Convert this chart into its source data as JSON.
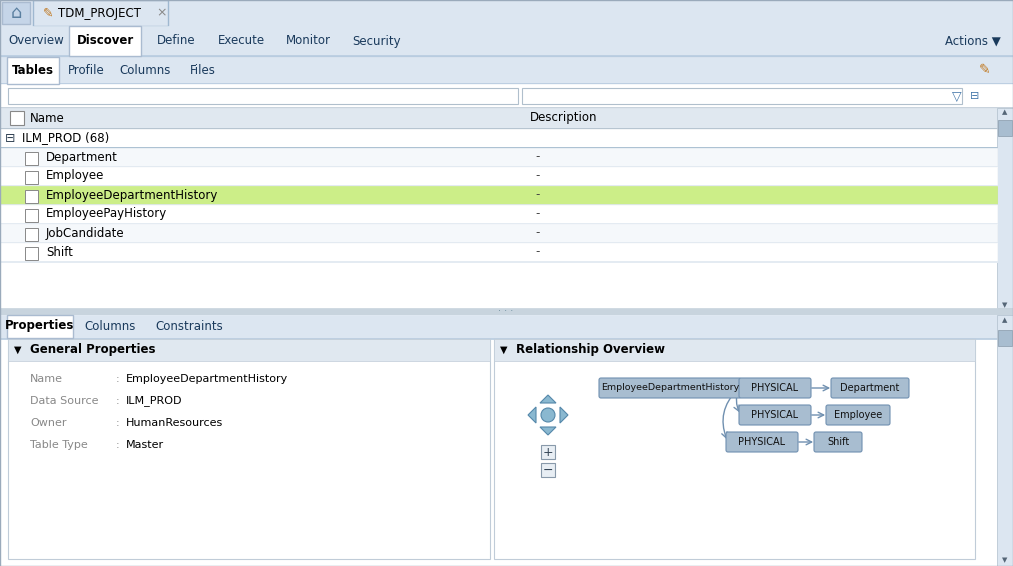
{
  "bg_color": "#dce6f1",
  "white": "#ffffff",
  "mid_gray": "#c8d4e0",
  "green_highlight": "#ccee88",
  "node_bg": "#a8bdd0",
  "node_border": "#8aabcc",
  "top_tabs": [
    "Overview",
    "Discover",
    "Define",
    "Execute",
    "Monitor",
    "Security"
  ],
  "active_top_tab": "Discover",
  "project_name": "TDM_PROJECT",
  "sub_tabs": [
    "Tables",
    "Profile",
    "Columns",
    "Files"
  ],
  "active_sub_tab": "Tables",
  "group_label": "ILM_PROD (68)",
  "rows": [
    {
      "name": "Department",
      "desc": "-",
      "highlight": false
    },
    {
      "name": "Employee",
      "desc": "-",
      "highlight": false
    },
    {
      "name": "EmployeeDepartmentHistory",
      "desc": "-",
      "highlight": true
    },
    {
      "name": "EmployeePayHistory",
      "desc": "-",
      "highlight": false
    },
    {
      "name": "JobCandidate",
      "desc": "-",
      "highlight": false
    },
    {
      "name": "Shift",
      "desc": "-",
      "highlight": false
    }
  ],
  "detail_tabs": [
    "Properties",
    "Columns",
    "Constraints"
  ],
  "active_detail_tab": "Properties",
  "gen_props_label": "General Properties",
  "rel_overview_label": "Relationship Overview",
  "props": [
    {
      "key": "Name",
      "colon": ":",
      "val": "EmployeeDepartmentHistory"
    },
    {
      "key": "Data Source",
      "colon": ":",
      "val": "ILM_PROD"
    },
    {
      "key": "Owner",
      "colon": ":",
      "val": "HumanResources"
    },
    {
      "key": "Table Type",
      "colon": ":",
      "val": "Master"
    }
  ]
}
